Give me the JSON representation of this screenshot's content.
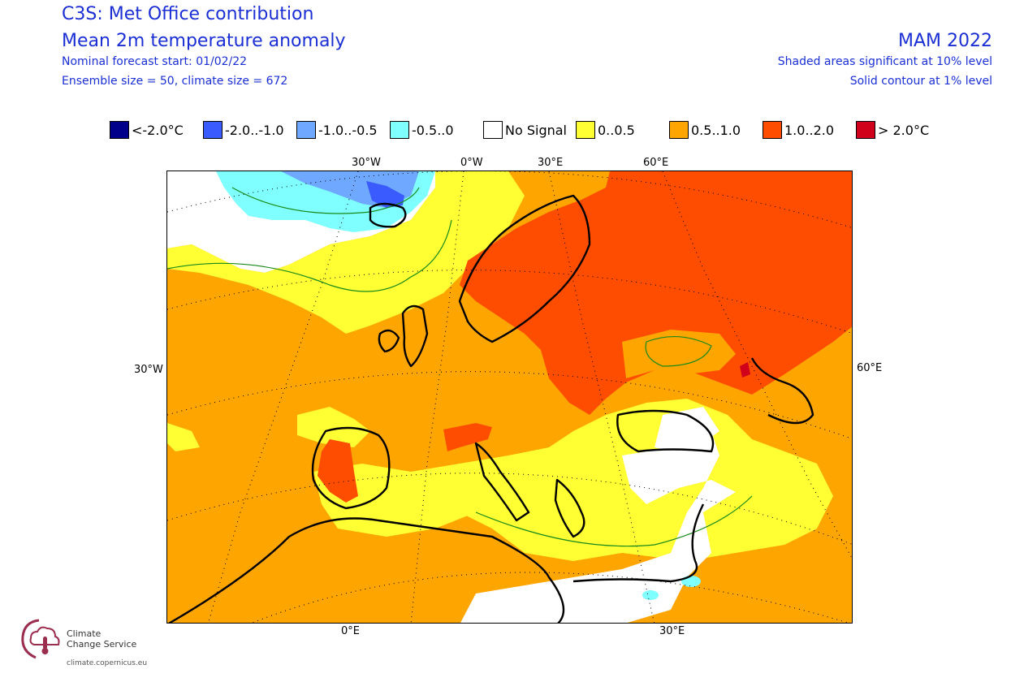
{
  "header": {
    "title1": "C3S: Met Office contribution",
    "title2": "Mean 2m temperature anomaly",
    "line3": "Nominal forecast start: 01/02/22",
    "line4": "Ensemble size = 50, climate size = 672",
    "season": "MAM 2022",
    "sig1": "Shaded areas significant at 10% level",
    "sig2": "Solid contour at 1% level"
  },
  "legend": [
    {
      "label": "<-2.0°C",
      "color": "#00008b"
    },
    {
      "label": "-2.0..-1.0",
      "color": "#3a5cff"
    },
    {
      "label": "-1.0..-0.5",
      "color": "#6ea8ff"
    },
    {
      "label": "-0.5..0",
      "color": "#7fffff"
    },
    {
      "label": "No Signal",
      "color": "#ffffff"
    },
    {
      "label": "0..0.5",
      "color": "#ffff33"
    },
    {
      "label": "0.5..1.0",
      "color": "#ffa500"
    },
    {
      "label": "1.0..2.0",
      "color": "#ff4d00"
    },
    {
      "label": "> 2.0°C",
      "color": "#d0021b"
    }
  ],
  "axes": {
    "top": [
      "30°W",
      "0°W",
      "30°E",
      "60°E"
    ],
    "left": "30°W",
    "right": "60°E",
    "bottom": [
      "0°E",
      "30°E"
    ]
  },
  "logo": {
    "line1": "Climate",
    "line2": "Change Service",
    "url": "climate.copernicus.eu",
    "icon": "thermometer-cloud-icon"
  }
}
